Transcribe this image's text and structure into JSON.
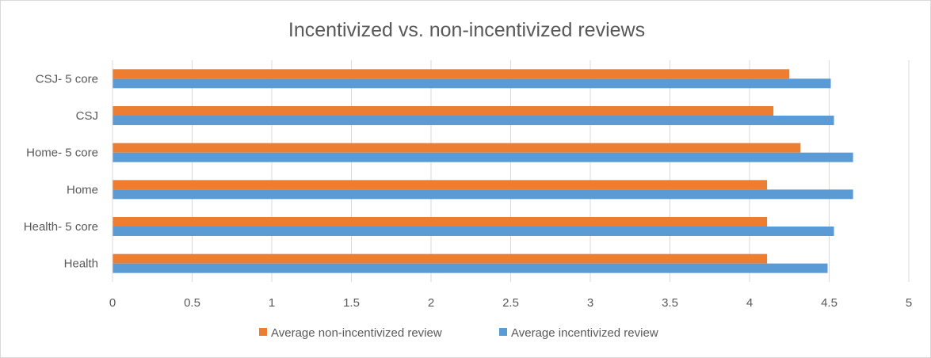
{
  "chart_data": {
    "type": "bar",
    "orientation": "horizontal",
    "title": "Incentivized vs. non-incentivized reviews",
    "categories": [
      "CSJ- 5 core",
      "CSJ",
      "Home- 5 core",
      "Home",
      "Health- 5 core",
      "Health"
    ],
    "series": [
      {
        "name": "Average non-incentivized review",
        "color": "#ed7d31",
        "values": [
          4.25,
          4.15,
          4.32,
          4.11,
          4.11,
          4.11
        ]
      },
      {
        "name": "Average incentivized review",
        "color": "#5b9bd5",
        "values": [
          4.51,
          4.53,
          4.65,
          4.65,
          4.53,
          4.49
        ]
      }
    ],
    "xlim": [
      0,
      5
    ],
    "x_ticks": [
      "0",
      "0.5",
      "1",
      "1.5",
      "2",
      "2.5",
      "3",
      "3.5",
      "4",
      "4.5",
      "5"
    ],
    "grid": true,
    "legend_position": "bottom"
  }
}
